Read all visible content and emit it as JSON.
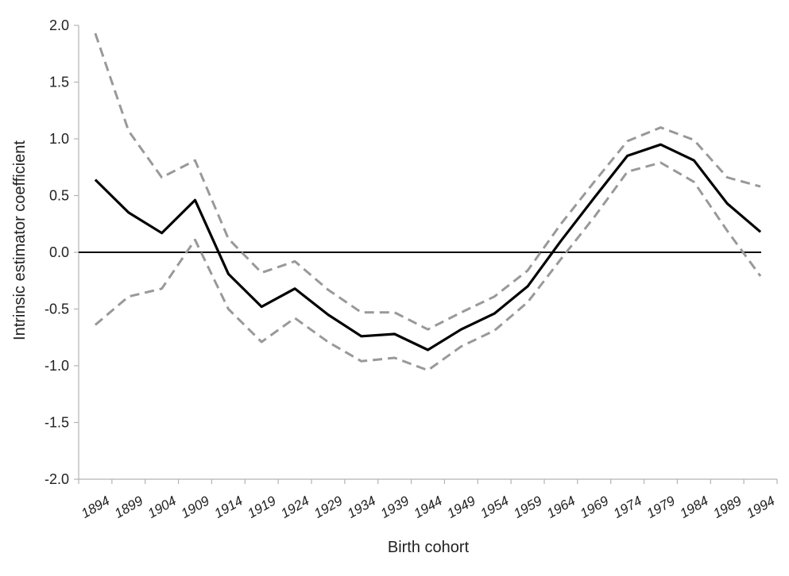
{
  "chart_data": {
    "type": "line",
    "title": "",
    "xlabel": "Birth cohort",
    "ylabel": "Intrinsic estimator coefficient",
    "ylim": [
      -2.0,
      2.0
    ],
    "yticks": [
      "2.0",
      "1.5",
      "1.0",
      "0.5",
      "0.0",
      "-0.5",
      "-1.0",
      "-1.5",
      "-2.0"
    ],
    "ytick_values": [
      2.0,
      1.5,
      1.0,
      0.5,
      0.0,
      -0.5,
      -1.0,
      -1.5,
      -2.0
    ],
    "categories": [
      "1894",
      "1899",
      "1904",
      "1909",
      "1914",
      "1919",
      "1924",
      "1929",
      "1934",
      "1939",
      "1944",
      "1949",
      "1954",
      "1959",
      "1964",
      "1969",
      "1974",
      "1979",
      "1984",
      "1989",
      "1994"
    ],
    "reference_line": 0.0,
    "grid": false,
    "legend": "none",
    "series": [
      {
        "style": "solid",
        "color": "#000000",
        "values": [
          0.64,
          0.35,
          0.17,
          0.46,
          -0.19,
          -0.48,
          -0.32,
          -0.55,
          -0.74,
          -0.72,
          -0.86,
          -0.68,
          -0.54,
          -0.3,
          0.1,
          0.48,
          0.85,
          0.95,
          0.81,
          0.43,
          0.18
        ]
      },
      {
        "style": "dashed",
        "color": "#999999",
        "values": [
          1.93,
          1.07,
          0.66,
          0.81,
          0.12,
          -0.18,
          -0.08,
          -0.33,
          -0.53,
          -0.53,
          -0.68,
          -0.53,
          -0.39,
          -0.16,
          0.25,
          0.62,
          0.98,
          1.1,
          0.99,
          0.66,
          0.58
        ]
      },
      {
        "style": "dashed",
        "color": "#999999",
        "values": [
          -0.64,
          -0.39,
          -0.32,
          0.11,
          -0.5,
          -0.79,
          -0.58,
          -0.79,
          -0.96,
          -0.93,
          -1.04,
          -0.83,
          -0.69,
          -0.44,
          -0.06,
          0.31,
          0.71,
          0.79,
          0.62,
          0.19,
          -0.21
        ]
      }
    ]
  }
}
